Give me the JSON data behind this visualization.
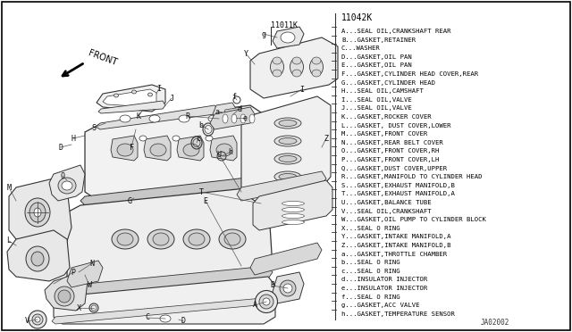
{
  "background_color": "#ffffff",
  "border_color": "#000000",
  "part_number_left": "11011K",
  "part_number_right": "11042K",
  "footer_text": "JA02002",
  "legend_items": [
    "A...SEAL OIL,CRANKSHAFT REAR",
    "B...GASKET,RETAINER",
    "C...WASHER",
    "D...GASKET,OIL PAN",
    "E...GASKET,OIL PAN",
    "F...GASKET,CYLINDER HEAD COVER,REAR",
    "G...GASKET,CYLINDER HEAD",
    "H...SEAL OIL,CAMSHAFT",
    "I...SEAL OIL,VALVE",
    "J...SEAL OIL,VALVE",
    "K...GASKET,ROCKER COVER",
    "L...GASKET, DUST COVER,LOWER",
    "M...GASKET,FRONT COVER",
    "N...GASKET,REAR BELT COVER",
    "O...GASKET,FRONT COVER,RH",
    "P...GASKET,FRONT COVER,LH",
    "Q...GASKET,DUST COVER,UPPER",
    "R...GASKET,MANIFOLD TO CYLINDER HEAD",
    "S...GASKET,EXHAUST MANIFOLD,B",
    "T...GASKET,EXHAUST MANIFOLD,A",
    "U...GASKET,BALANCE TUBE",
    "V...SEAL OIL,CRANKSHAFT",
    "W...GASKET,OIL PUMP TO CYLINDER BLOCK",
    "X...SEAL O RING",
    "Y...GASKET,INTAKE MANIFOLD,A",
    "Z...GASKET,INTAKE MANIFOLD,B",
    "a...GASKET,THROTTLE CHAMBER",
    "b...SEAL O RING",
    "c...SEAL O RING",
    "d...INSULATOR INJECTOR",
    "e...INSULATOR INJECTOR",
    "f...SEAL O RING",
    "g...GASKET,ACC VALVE",
    "h...GASKET,TEMPERATURE SENSOR"
  ],
  "diagram_ec": "#333333",
  "lw_main": 0.8,
  "lw_thin": 0.5
}
